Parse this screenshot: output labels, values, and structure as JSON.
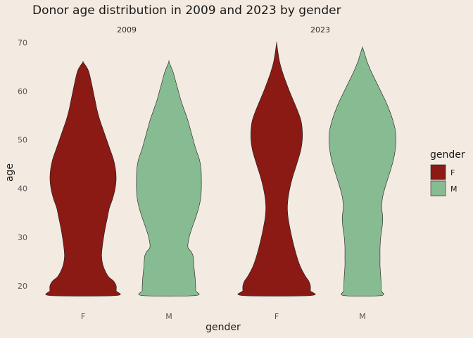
{
  "chart_data": {
    "type": "violin",
    "title": "Donor age distribution in 2009 and 2023 by gender",
    "xlabel": "gender",
    "ylabel": "age",
    "ylim": [
      16.8,
      71.5
    ],
    "y_ticks": [
      20,
      30,
      40,
      50,
      60,
      70
    ],
    "categories": [
      "F",
      "M"
    ],
    "grid": false,
    "legend": {
      "title": "gender",
      "position": "right",
      "entries": [
        {
          "label": "F",
          "color": "#8b1a14"
        },
        {
          "label": "M",
          "color": "#87bb91"
        }
      ]
    },
    "panels": [
      {
        "label": "2009",
        "series": [
          {
            "category": "F",
            "color": "#8b1a14",
            "min": 18,
            "max": 66,
            "density": [
              [
                18,
                0.96
              ],
              [
                19,
                0.98
              ],
              [
                20,
                0.98
              ],
              [
                21,
                0.9
              ],
              [
                22,
                0.74
              ],
              [
                24,
                0.6
              ],
              [
                26,
                0.55
              ],
              [
                28,
                0.57
              ],
              [
                30,
                0.61
              ],
              [
                32,
                0.66
              ],
              [
                34,
                0.72
              ],
              [
                36,
                0.78
              ],
              [
                38,
                0.88
              ],
              [
                40,
                0.95
              ],
              [
                42,
                0.98
              ],
              [
                44,
                0.96
              ],
              [
                46,
                0.9
              ],
              [
                48,
                0.8
              ],
              [
                50,
                0.7
              ],
              [
                52,
                0.6
              ],
              [
                54,
                0.5
              ],
              [
                56,
                0.42
              ],
              [
                58,
                0.36
              ],
              [
                60,
                0.3
              ],
              [
                62,
                0.24
              ],
              [
                64,
                0.17
              ],
              [
                65,
                0.1
              ],
              [
                66,
                0.0
              ]
            ]
          },
          {
            "category": "M",
            "color": "#87bb91",
            "min": 18,
            "max": 66,
            "density": [
              [
                18,
                0.78
              ],
              [
                19,
                0.79
              ],
              [
                20,
                0.79
              ],
              [
                22,
                0.77
              ],
              [
                24,
                0.74
              ],
              [
                26,
                0.72
              ],
              [
                27,
                0.66
              ],
              [
                28,
                0.56
              ],
              [
                30,
                0.6
              ],
              [
                32,
                0.69
              ],
              [
                34,
                0.79
              ],
              [
                36,
                0.88
              ],
              [
                38,
                0.94
              ],
              [
                40,
                0.96
              ],
              [
                42,
                0.96
              ],
              [
                44,
                0.95
              ],
              [
                46,
                0.9
              ],
              [
                48,
                0.8
              ],
              [
                50,
                0.72
              ],
              [
                52,
                0.64
              ],
              [
                54,
                0.56
              ],
              [
                56,
                0.46
              ],
              [
                58,
                0.36
              ],
              [
                60,
                0.28
              ],
              [
                62,
                0.2
              ],
              [
                64,
                0.12
              ],
              [
                66,
                0.0
              ]
            ]
          }
        ]
      },
      {
        "label": "2023",
        "series": [
          {
            "category": "F",
            "color": "#8b1a14",
            "min": 18,
            "max": 70,
            "density": [
              [
                18,
                1.0
              ],
              [
                19,
                1.0
              ],
              [
                20,
                1.0
              ],
              [
                21,
                0.95
              ],
              [
                22,
                0.85
              ],
              [
                24,
                0.7
              ],
              [
                26,
                0.6
              ],
              [
                28,
                0.52
              ],
              [
                30,
                0.45
              ],
              [
                32,
                0.39
              ],
              [
                34,
                0.34
              ],
              [
                36,
                0.32
              ],
              [
                38,
                0.34
              ],
              [
                40,
                0.39
              ],
              [
                42,
                0.46
              ],
              [
                44,
                0.55
              ],
              [
                46,
                0.64
              ],
              [
                48,
                0.72
              ],
              [
                50,
                0.76
              ],
              [
                52,
                0.76
              ],
              [
                54,
                0.72
              ],
              [
                56,
                0.62
              ],
              [
                58,
                0.5
              ],
              [
                60,
                0.38
              ],
              [
                62,
                0.27
              ],
              [
                64,
                0.17
              ],
              [
                66,
                0.09
              ],
              [
                68,
                0.04
              ],
              [
                69,
                0.02
              ],
              [
                70,
                0.0
              ]
            ]
          },
          {
            "category": "M",
            "color": "#87bb91",
            "min": 18,
            "max": 69,
            "density": [
              [
                18,
                0.55
              ],
              [
                19,
                0.55
              ],
              [
                20,
                0.55
              ],
              [
                22,
                0.54
              ],
              [
                24,
                0.52
              ],
              [
                26,
                0.52
              ],
              [
                28,
                0.52
              ],
              [
                30,
                0.54
              ],
              [
                32,
                0.58
              ],
              [
                34,
                0.6
              ],
              [
                36,
                0.57
              ],
              [
                38,
                0.59
              ],
              [
                40,
                0.66
              ],
              [
                42,
                0.75
              ],
              [
                44,
                0.84
              ],
              [
                46,
                0.92
              ],
              [
                48,
                0.97
              ],
              [
                50,
                0.99
              ],
              [
                52,
                0.97
              ],
              [
                54,
                0.9
              ],
              [
                56,
                0.8
              ],
              [
                58,
                0.68
              ],
              [
                60,
                0.54
              ],
              [
                62,
                0.4
              ],
              [
                64,
                0.26
              ],
              [
                66,
                0.14
              ],
              [
                68,
                0.05
              ],
              [
                69,
                0.0
              ]
            ]
          }
        ]
      }
    ]
  }
}
